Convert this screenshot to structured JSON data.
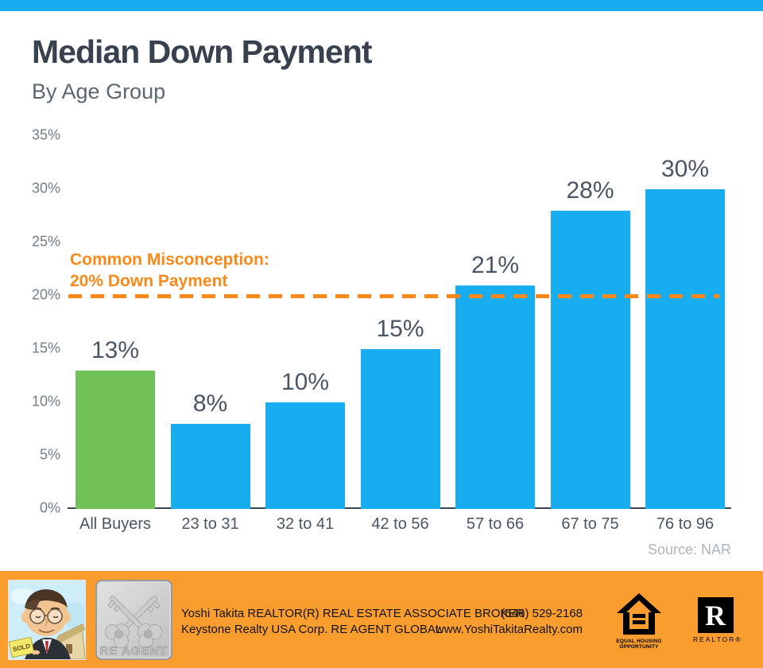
{
  "header": {
    "title": "Median Down Payment",
    "subtitle": "By Age Group"
  },
  "chart_data": {
    "type": "bar",
    "title": "Median Down Payment",
    "subtitle": "By Age Group",
    "categories": [
      "All Buyers",
      "23 to 31",
      "32 to 41",
      "42 to 56",
      "57 to 66",
      "67 to 75",
      "76 to 96"
    ],
    "values": [
      13,
      8,
      10,
      15,
      21,
      28,
      30
    ],
    "bar_labels": [
      "13%",
      "8%",
      "10%",
      "15%",
      "21%",
      "28%",
      "30%"
    ],
    "bar_colors": [
      "#70C158",
      "#18ADEF",
      "#18ADEF",
      "#18ADEF",
      "#18ADEF",
      "#18ADEF",
      "#18ADEF"
    ],
    "ylim": [
      0,
      35
    ],
    "y_ticks": [
      {
        "value": 35,
        "label": "35%"
      },
      {
        "value": 30,
        "label": "30%"
      },
      {
        "value": 25,
        "label": "25%"
      },
      {
        "value": 20,
        "label": "20%"
      },
      {
        "value": 15,
        "label": "15%"
      },
      {
        "value": 10,
        "label": "10%"
      },
      {
        "value": 5,
        "label": "5%"
      },
      {
        "value": 0,
        "label": "0%"
      }
    ],
    "grid": "off",
    "reference_line": {
      "value": 20,
      "style": "dashed",
      "color": "#F8891A",
      "annotation_line1": "Common Misconception:",
      "annotation_line2": "20% Down Payment"
    },
    "source": "Source: NAR"
  },
  "footer": {
    "agent_line1": "Yoshi Takita REALTOR(R) REAL ESTATE ASSOCIATE BROKER",
    "agent_line2": "Keystone Realty USA Corp.  RE AGENT GLOBAL",
    "phone": "(646) 529-2168",
    "website": "www.YoshiTakitaRealty.com",
    "reagent_logo_text": "RE AGENT",
    "sold_sign_text": "SOLD",
    "equal_housing_caption_line1": "EQUAL HOUSING",
    "equal_housing_caption_line2": "OPPORTUNITY",
    "realtor_letter": "R",
    "realtor_caption": "REALTOR®"
  },
  "colors": {
    "accent_blue": "#18ADEF",
    "accent_green": "#70C158",
    "annotation_orange": "#F8891A",
    "footer_orange": "#F99E2E",
    "title_color": "#37424E"
  }
}
